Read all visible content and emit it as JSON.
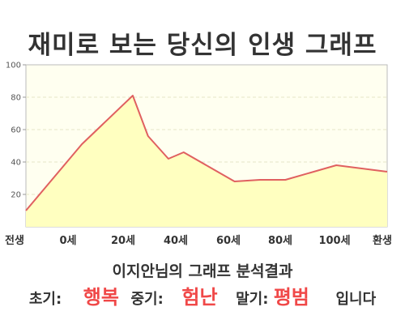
{
  "title": "재미로 보는 당신의 인생 그래프",
  "chart_data": {
    "type": "area",
    "title": "재미로 보는 당신의 인생 그래프",
    "x_tick_labels": [
      "전생",
      "0세",
      "20세",
      "40세",
      "60세",
      "80세",
      "100세",
      "환생"
    ],
    "y_ticks": [
      20,
      40,
      60,
      80,
      100
    ],
    "ylim": [
      0,
      100
    ],
    "grid": true,
    "x": [
      -22,
      0,
      20,
      26,
      34,
      40,
      50,
      60,
      70,
      80,
      100,
      120
    ],
    "values": [
      10,
      51,
      81,
      56,
      42,
      46,
      37,
      28,
      29,
      29,
      38,
      34
    ],
    "colors": {
      "line": "#e06060",
      "fill": "#ffffc0",
      "plot_bg": "#fffff0"
    }
  },
  "result": {
    "title": "이지안님의 그래프 분석결과",
    "early_label": "초기:",
    "early_value": "행복",
    "middle_label": "중기:",
    "middle_value": "험난",
    "late_label": "말기:",
    "late_value": "평범",
    "suffix": "입니다"
  },
  "accent_color": "#f04848"
}
